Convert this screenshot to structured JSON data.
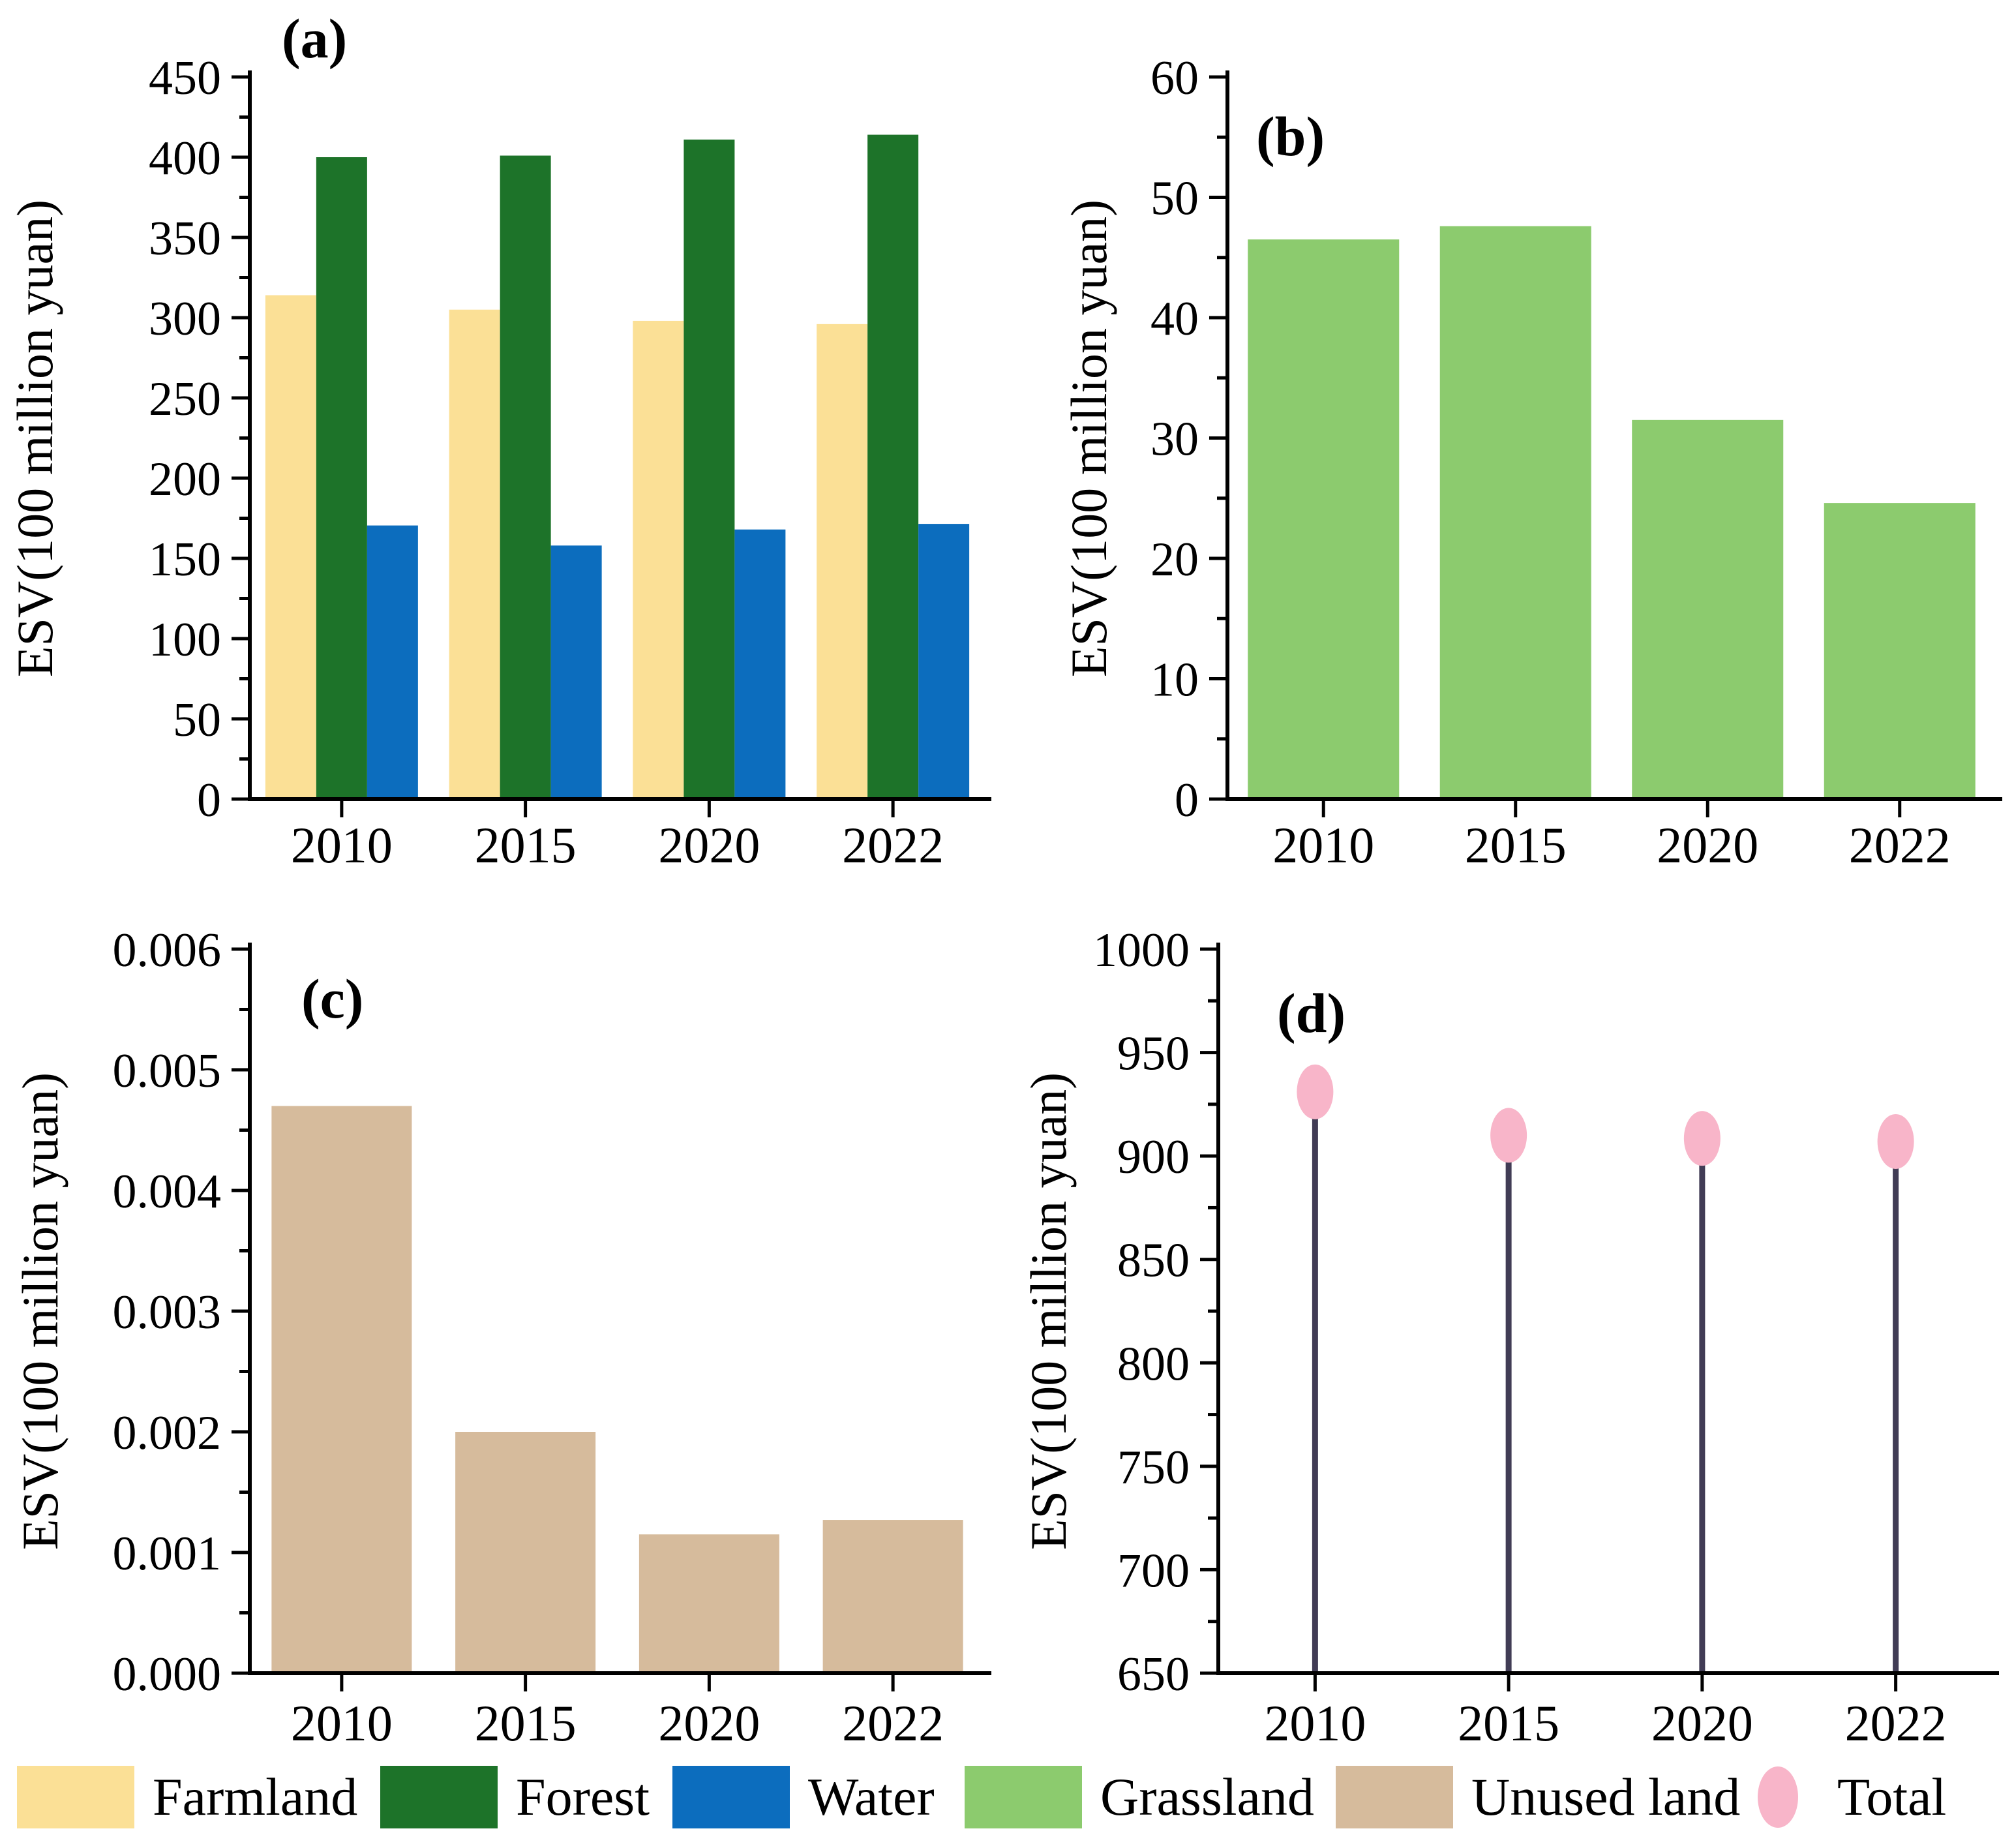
{
  "figure": {
    "ylabel": "ESV(100 million yuan)",
    "categories": [
      "2010",
      "2015",
      "2020",
      "2022"
    ]
  },
  "chart_data": [
    {
      "type": "bar",
      "panel_label": "(a)",
      "categories": [
        "2010",
        "2015",
        "2020",
        "2022"
      ],
      "ylabel": "ESV(100 million yuan)",
      "ylim": [
        0,
        450
      ],
      "ytick_step": 50,
      "tick_decimals": 0,
      "grid": false,
      "series": [
        {
          "name": "Farmland",
          "color": "#FBE096",
          "values": [
            314,
            305,
            298,
            296
          ]
        },
        {
          "name": "Forest",
          "color": "#1D7329",
          "values": [
            400,
            401,
            411,
            414
          ]
        },
        {
          "name": "Water",
          "color": "#0C6DBE",
          "values": [
            170.5,
            158,
            168,
            171.5
          ]
        }
      ]
    },
    {
      "type": "bar",
      "panel_label": "(b)",
      "categories": [
        "2010",
        "2015",
        "2020",
        "2022"
      ],
      "ylabel": "ESV(100 million yuan)",
      "ylim": [
        0,
        60
      ],
      "ytick_step": 10,
      "tick_decimals": 0,
      "grid": false,
      "series": [
        {
          "name": "Grassland",
          "color": "#8CCB6E",
          "values": [
            46.5,
            47.6,
            31.5,
            24.6
          ]
        }
      ]
    },
    {
      "type": "bar",
      "panel_label": "(c)",
      "categories": [
        "2010",
        "2015",
        "2020",
        "2022"
      ],
      "ylabel": "ESV(100 million yuan)",
      "ylim": [
        0,
        0.006
      ],
      "ytick_step": 0.001,
      "tick_decimals": 3,
      "grid": false,
      "series": [
        {
          "name": "Unused land",
          "color": "#D6BB9C",
          "values": [
            0.0047,
            0.002,
            0.00115,
            0.00127
          ]
        }
      ]
    },
    {
      "type": "lollipop",
      "panel_label": "(d)",
      "categories": [
        "2010",
        "2015",
        "2020",
        "2022"
      ],
      "ylabel": "ESV(100 million yuan)",
      "ylim": [
        650,
        1000
      ],
      "ytick_step": 50,
      "tick_decimals": 0,
      "grid": false,
      "series": [
        {
          "name": "Total",
          "color": "#F8B5C9",
          "stem_color": "#413C55",
          "values": [
            931,
            910,
            908.5,
            907
          ]
        }
      ]
    }
  ],
  "legend": {
    "items": [
      {
        "label": "Farmland",
        "color": "#FBE096",
        "marker": "rect"
      },
      {
        "label": "Forest",
        "color": "#1D7329",
        "marker": "rect"
      },
      {
        "label": "Water",
        "color": "#0C6DBE",
        "marker": "rect"
      },
      {
        "label": "Grassland",
        "color": "#8CCB6E",
        "marker": "rect"
      },
      {
        "label": "Unused land",
        "color": "#D6BB9C",
        "marker": "rect"
      },
      {
        "label": "Total",
        "color": "#F8B5C9",
        "marker": "ellipse"
      }
    ]
  }
}
